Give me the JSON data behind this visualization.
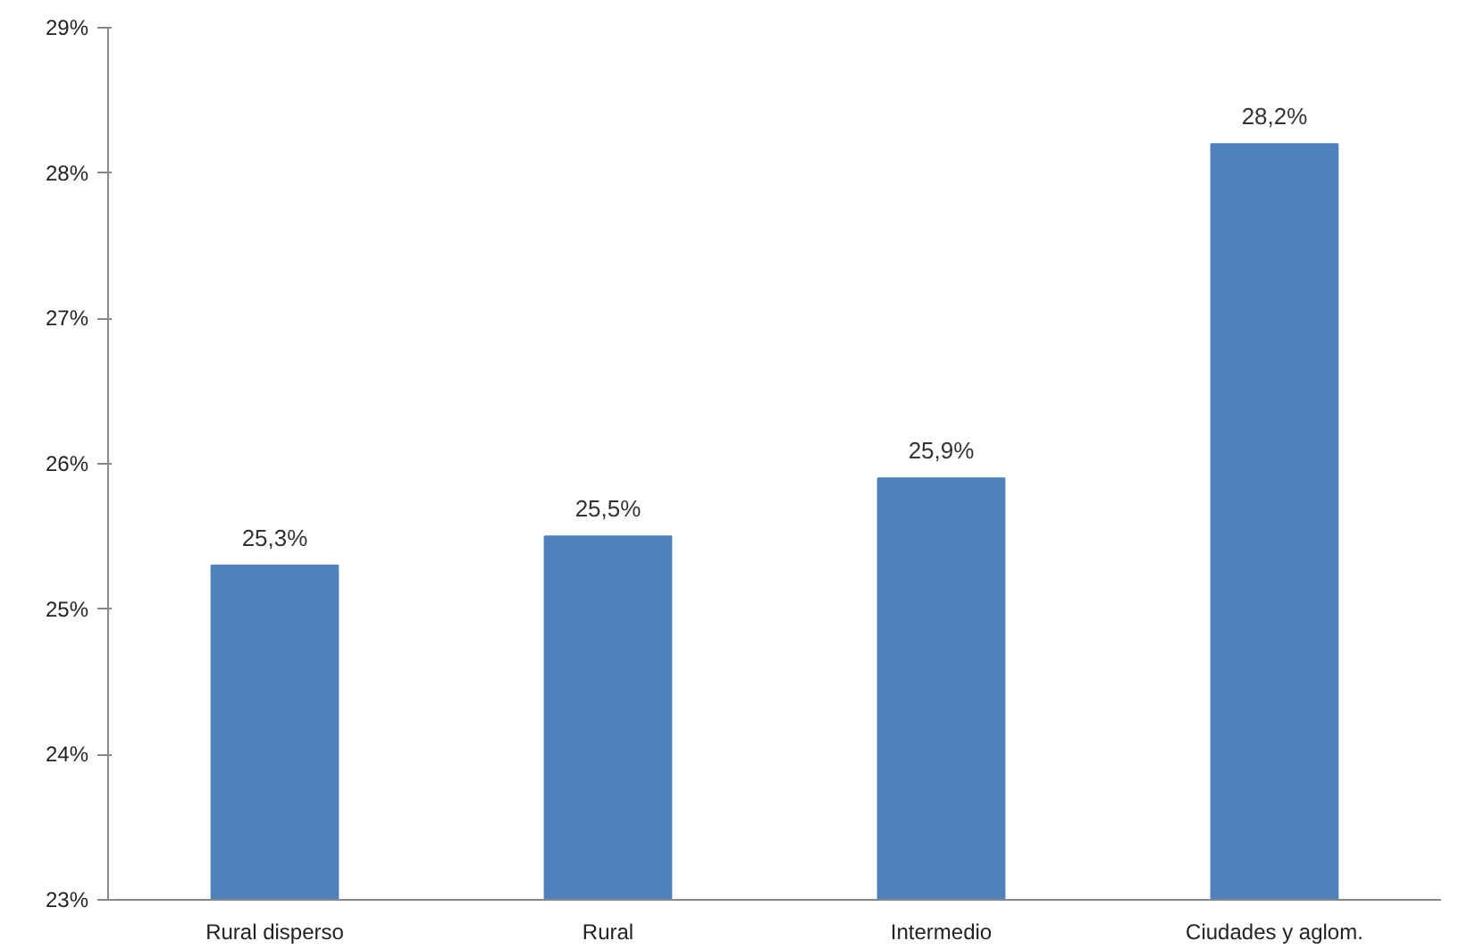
{
  "chart_data": {
    "type": "bar",
    "categories": [
      "Rural disperso",
      "Rural",
      "Intermedio",
      "Ciudades y aglom."
    ],
    "values": [
      25.3,
      25.5,
      25.9,
      28.2
    ],
    "value_labels": [
      "25,3%",
      "25,5%",
      "25,9%",
      "28,2%"
    ],
    "color": "#4f81bd",
    "ylim": [
      23,
      29
    ],
    "yticks": [
      {
        "value": 23,
        "label": "23%"
      },
      {
        "value": 24,
        "label": "24%"
      },
      {
        "value": 25,
        "label": "25%"
      },
      {
        "value": 26,
        "label": "26%"
      },
      {
        "value": 27,
        "label": "27%"
      },
      {
        "value": 28,
        "label": "28%"
      },
      {
        "value": 29,
        "label": "29%"
      }
    ],
    "grid": false
  }
}
